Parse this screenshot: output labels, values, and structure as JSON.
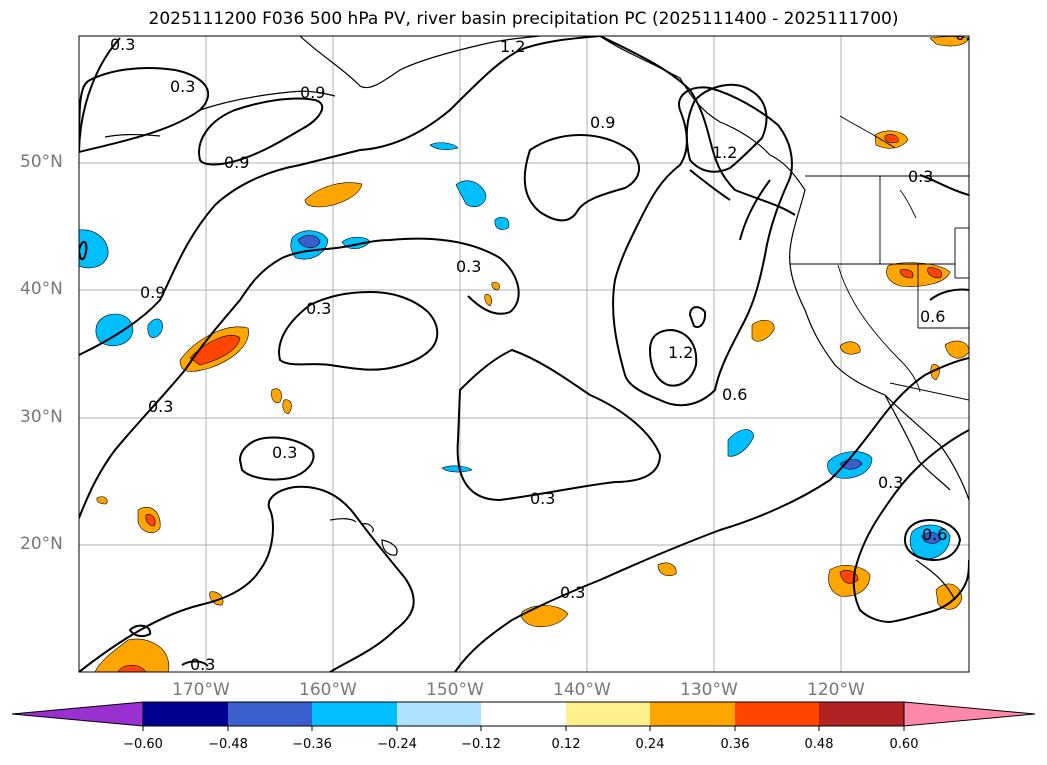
{
  "title": "2025111200 F036 500 hPa PV, river basin precipitation PC (2025111400 - 2025111700)",
  "map": {
    "lat_labels": [
      "50°N",
      "40°N",
      "30°N",
      "20°N"
    ],
    "lon_labels": [
      "170°W",
      "160°W",
      "150°W",
      "140°W",
      "130°W",
      "120°W"
    ],
    "contour_labels": [
      "0.3",
      "0.3",
      "0.9",
      "1.2",
      "0.9",
      "0.9",
      "1.2",
      "0.3",
      "0.9",
      "0.3",
      "0.3",
      "1.2",
      "0.6",
      "0.3",
      "0.3",
      "0.3",
      "0.3",
      "0.3",
      "0.6",
      "0.3",
      "0.6",
      "0.3"
    ]
  },
  "colorbar": {
    "ticks": [
      "−0.60",
      "−0.48",
      "−0.36",
      "−0.24",
      "−0.12",
      "0.12",
      "0.24",
      "0.36",
      "0.48",
      "0.60"
    ],
    "colors": [
      "#9b30d0",
      "#000090",
      "#3a5fcd",
      "#00bfff",
      "#b0e2ff",
      "#ffffff",
      "#fff08c",
      "#ffa500",
      "#ff4500",
      "#b22222",
      "#ff88aa"
    ]
  }
}
